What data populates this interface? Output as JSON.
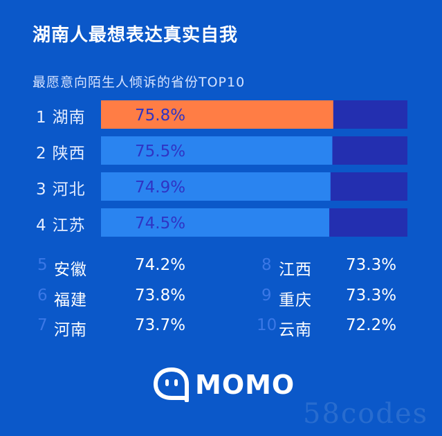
{
  "header": {
    "title": "湖南人最想表达真实自我",
    "subtitle": "最愿意向陌生人倾诉的省份TOP10"
  },
  "colors": {
    "background": "#0b58c9",
    "bar_track": "#232fb0",
    "bar_top": "#ff7d45",
    "bar_other": "#2a84f0",
    "bar_value_text": "#2f34c4",
    "rank_num_light": "#3b78e6"
  },
  "chart_data": {
    "type": "bar",
    "orientation": "horizontal",
    "title": "最愿意向陌生人倾诉的省份TOP10",
    "xlim": [
      0,
      100
    ],
    "top_bars": [
      {
        "rank": "1",
        "name": "湖南",
        "value": 75.8,
        "label": "75.8%"
      },
      {
        "rank": "2",
        "name": "陕西",
        "value": 75.5,
        "label": "75.5%"
      },
      {
        "rank": "3",
        "name": "河北",
        "value": 74.9,
        "label": "74.9%"
      },
      {
        "rank": "4",
        "name": "江苏",
        "value": 74.5,
        "label": "74.5%"
      }
    ],
    "list_left": [
      {
        "rank": "5",
        "name": "安徽",
        "label": "74.2%"
      },
      {
        "rank": "6",
        "name": "福建",
        "label": "73.8%"
      },
      {
        "rank": "7",
        "name": "河南",
        "label": "73.7%"
      }
    ],
    "list_right": [
      {
        "rank": "8",
        "name": "江西",
        "label": "73.3%"
      },
      {
        "rank": "9",
        "name": "重庆",
        "label": "73.3%"
      },
      {
        "rank": "10",
        "name": "云南",
        "label": "72.2%"
      }
    ]
  },
  "brand": {
    "logo_icon": "momo-speech-bubble-icon",
    "logo_text": "MOMO"
  },
  "watermark": {
    "text": "58codes"
  }
}
